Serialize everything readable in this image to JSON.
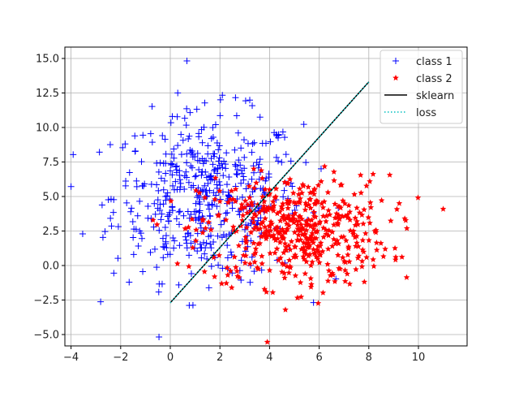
{
  "chart_data": {
    "type": "scatter",
    "title": "",
    "xlabel": "",
    "ylabel": "",
    "xlim": [
      -4.3,
      11.8
    ],
    "ylim": [
      -5.9,
      15.8
    ],
    "xticks": [
      -4,
      -2,
      0,
      2,
      4,
      6,
      8,
      10
    ],
    "xtick_labels": [
      "−4",
      "−2",
      "0",
      "2",
      "4",
      "6",
      "8",
      "10"
    ],
    "yticks": [
      -5.0,
      -2.5,
      0.0,
      2.5,
      5.0,
      7.5,
      10.0,
      12.5,
      15.0
    ],
    "ytick_labels": [
      "−5.0",
      "−2.5",
      "0.0",
      "2.5",
      "5.0",
      "7.5",
      "10.0",
      "12.5",
      "15.0"
    ],
    "grid": true,
    "legend_position": "upper right",
    "series": [
      {
        "name": "class 1",
        "marker": "+",
        "color": "#0000ff",
        "center": [
          1.5,
          5.0
        ],
        "spread": [
          1.9,
          3.0
        ],
        "n": 500
      },
      {
        "name": "class 2",
        "marker": "*",
        "color": "#ff0000",
        "center": [
          5.0,
          2.5
        ],
        "spread": [
          1.9,
          2.0
        ],
        "n": 500
      },
      {
        "name": "sklearn",
        "type": "line",
        "style": "solid",
        "color": "#000000",
        "x": [
          0,
          8
        ],
        "y": [
          -2.7,
          13.3
        ]
      },
      {
        "name": "loss",
        "type": "line",
        "style": "dotted",
        "color": "#00bfbf",
        "x": [
          0,
          8
        ],
        "y": [
          -2.7,
          13.3
        ]
      }
    ]
  }
}
